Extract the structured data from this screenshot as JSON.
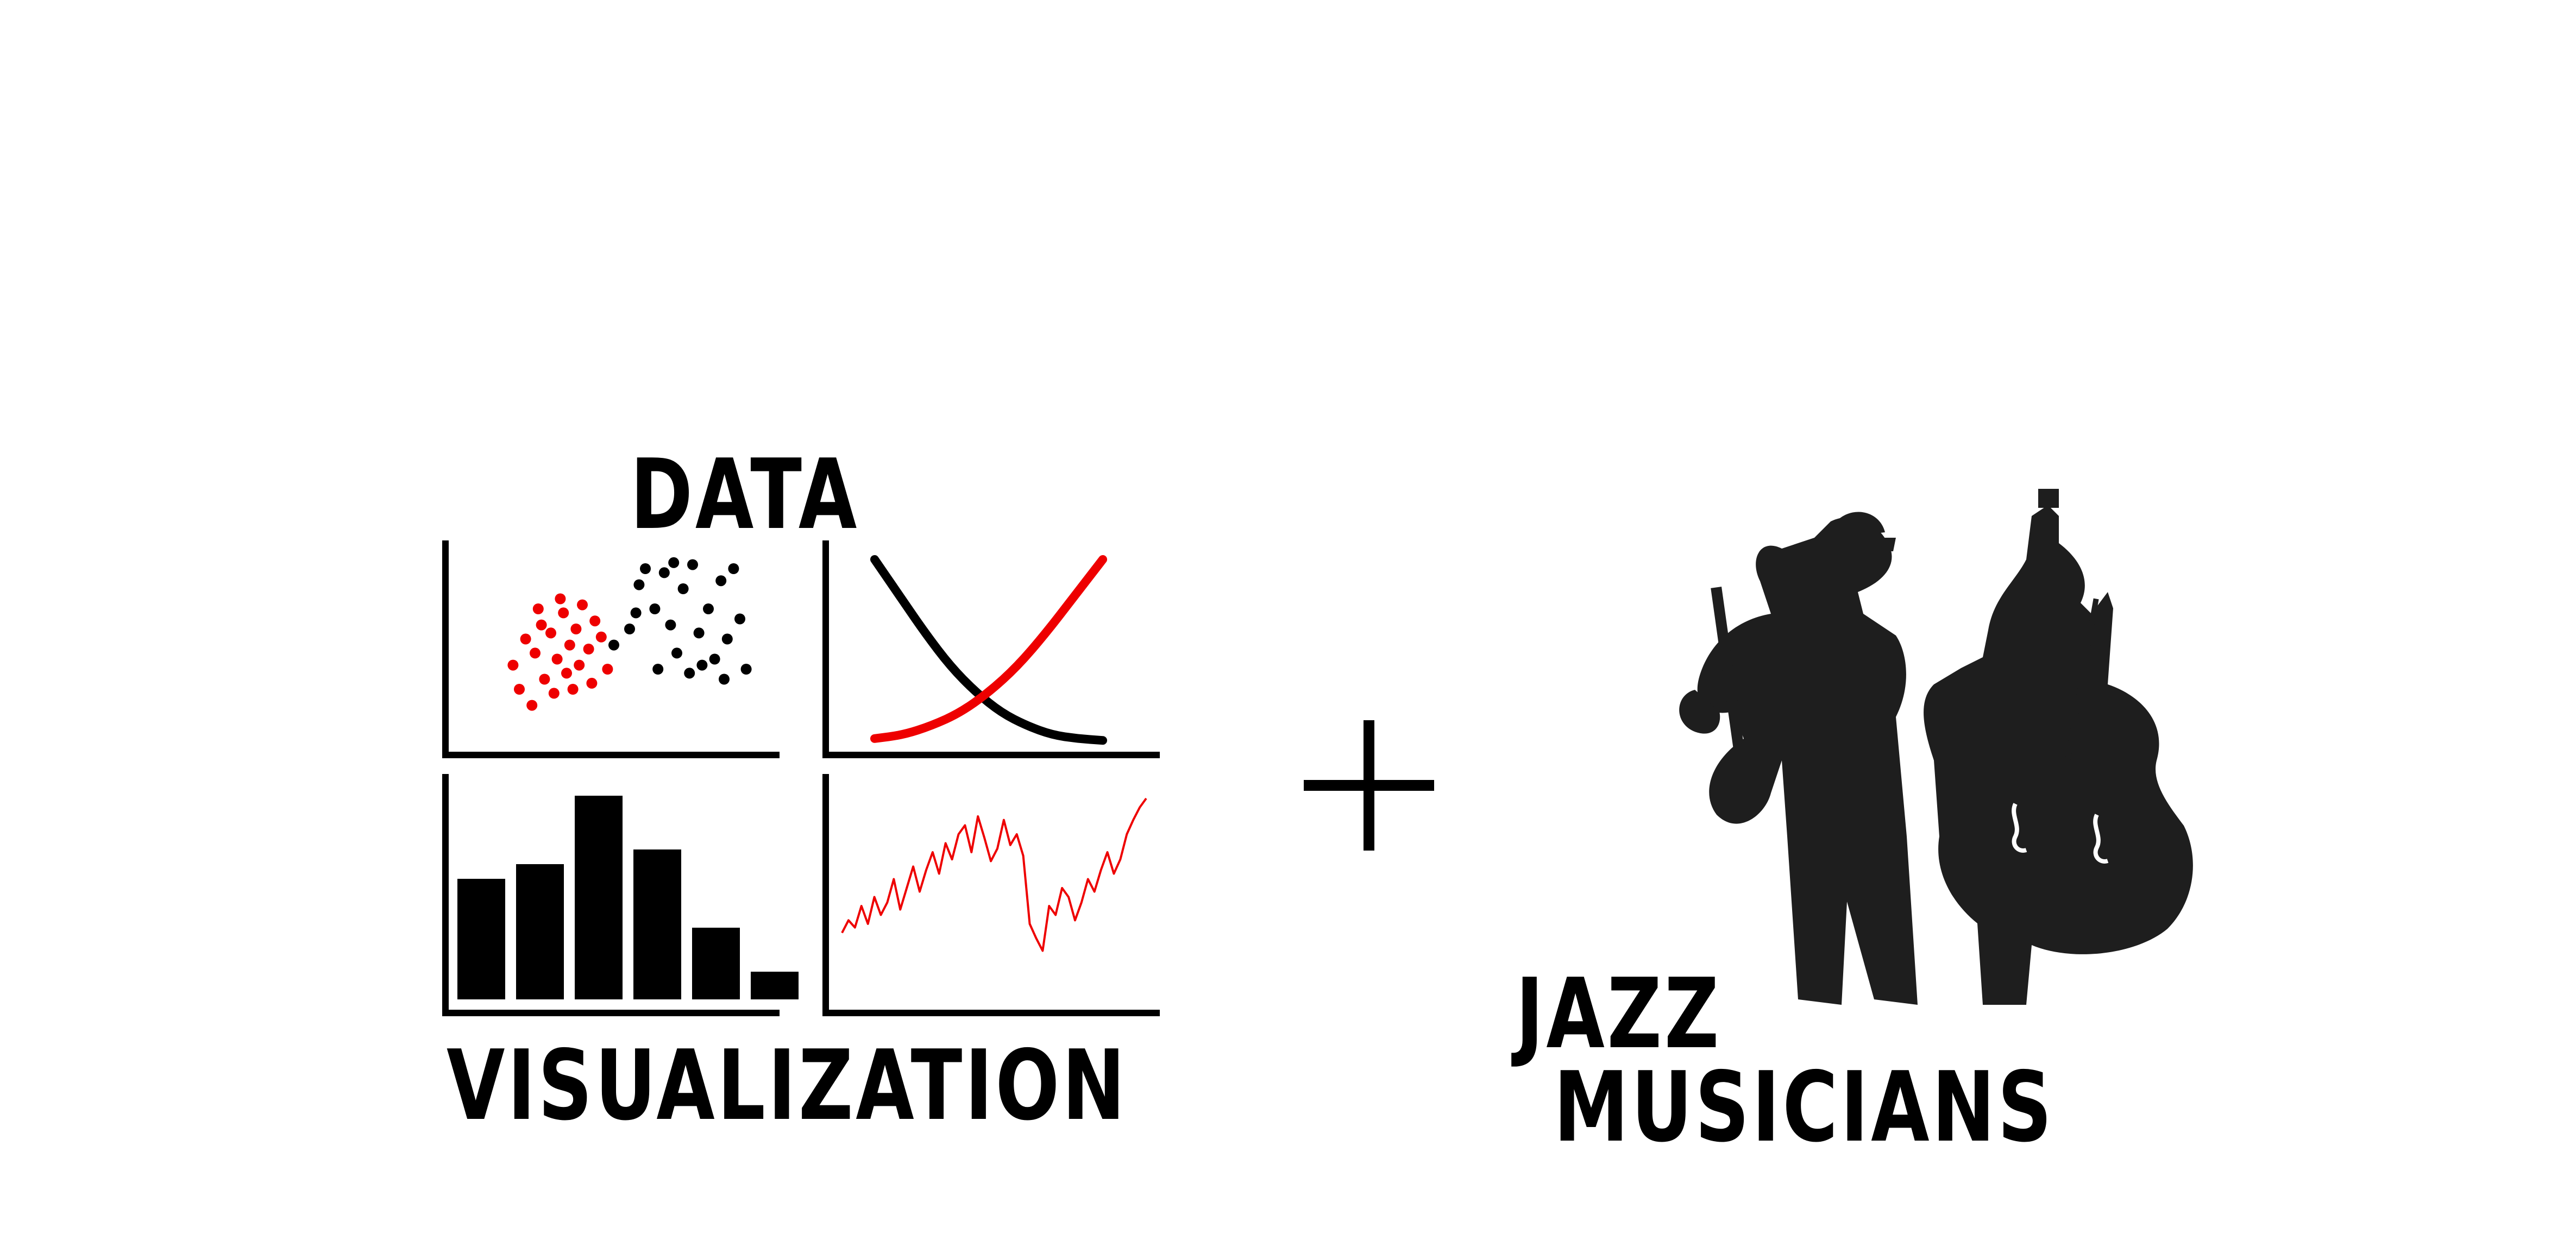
{
  "labels": {
    "top": "DATA",
    "bottom": "VISUALIZATION",
    "jazz_line1": "JAZZ",
    "jazz_line2": "MUSICIANS"
  },
  "operator": "+",
  "icons": [
    "scatter-plot-icon",
    "crossing-curves-icon",
    "bar-chart-icon",
    "line-chart-icon",
    "plus-icon",
    "jazz-musicians-silhouette"
  ],
  "colors": {
    "black": "#000000",
    "red": "#ee0000",
    "silhouette": "#1e1e1e"
  },
  "chart_data": [
    {
      "type": "scatter",
      "series": [
        {
          "color": "#ee0000",
          "values": [
            [
              0.18,
              0.42
            ],
            [
              0.22,
              0.55
            ],
            [
              0.25,
              0.48
            ],
            [
              0.27,
              0.62
            ],
            [
              0.3,
              0.58
            ],
            [
              0.32,
              0.45
            ],
            [
              0.34,
              0.68
            ],
            [
              0.36,
              0.52
            ],
            [
              0.38,
              0.6
            ],
            [
              0.4,
              0.72
            ],
            [
              0.42,
              0.5
            ],
            [
              0.44,
              0.64
            ],
            [
              0.2,
              0.3
            ],
            [
              0.24,
              0.22
            ],
            [
              0.28,
              0.35
            ],
            [
              0.31,
              0.28
            ],
            [
              0.35,
              0.38
            ],
            [
              0.39,
              0.42
            ],
            [
              0.43,
              0.33
            ],
            [
              0.46,
              0.56
            ],
            [
              0.48,
              0.4
            ],
            [
              0.26,
              0.7
            ],
            [
              0.33,
              0.75
            ],
            [
              0.37,
              0.3
            ]
          ]
        },
        {
          "color": "#000000",
          "values": [
            [
              0.5,
              0.52
            ],
            [
              0.55,
              0.6
            ],
            [
              0.58,
              0.82
            ],
            [
              0.6,
              0.9
            ],
            [
              0.63,
              0.7
            ],
            [
              0.66,
              0.88
            ],
            [
              0.68,
              0.62
            ],
            [
              0.7,
              0.48
            ],
            [
              0.72,
              0.8
            ],
            [
              0.75,
              0.92
            ],
            [
              0.77,
              0.58
            ],
            [
              0.8,
              0.7
            ],
            [
              0.82,
              0.45
            ],
            [
              0.84,
              0.84
            ],
            [
              0.86,
              0.55
            ],
            [
              0.88,
              0.9
            ],
            [
              0.9,
              0.65
            ],
            [
              0.92,
              0.4
            ],
            [
              0.64,
              0.4
            ],
            [
              0.74,
              0.38
            ],
            [
              0.85,
              0.35
            ],
            [
              0.78,
              0.42
            ],
            [
              0.57,
              0.68
            ],
            [
              0.69,
              0.93
            ]
          ]
        }
      ]
    },
    {
      "type": "line",
      "series": [
        {
          "color": "#000000",
          "values": [
            1.0,
            0.8,
            0.6,
            0.42,
            0.28,
            0.17,
            0.1,
            0.05,
            0.03,
            0.02
          ]
        },
        {
          "color": "#ee0000",
          "values": [
            0.03,
            0.05,
            0.1,
            0.17,
            0.28,
            0.42,
            0.6,
            0.8,
            1.0
          ]
        }
      ]
    },
    {
      "type": "bar",
      "values": [
        74,
        83,
        125,
        92,
        44,
        17
      ]
    },
    {
      "type": "line",
      "series": [
        {
          "color": "#ee0000",
          "values": [
            0.25,
            0.32,
            0.28,
            0.4,
            0.3,
            0.45,
            0.35,
            0.42,
            0.55,
            0.38,
            0.5,
            0.62,
            0.48,
            0.6,
            0.7,
            0.58,
            0.75,
            0.66,
            0.8,
            0.85,
            0.7,
            0.9,
            0.78,
            0.65,
            0.72,
            0.88,
            0.74,
            0.8,
            0.68,
            0.3,
            0.22,
            0.15,
            0.4,
            0.35,
            0.5,
            0.45,
            0.32,
            0.42,
            0.55,
            0.48,
            0.6,
            0.7,
            0.58,
            0.66,
            0.8,
            0.88,
            0.95,
            1.0
          ]
        }
      ]
    }
  ]
}
